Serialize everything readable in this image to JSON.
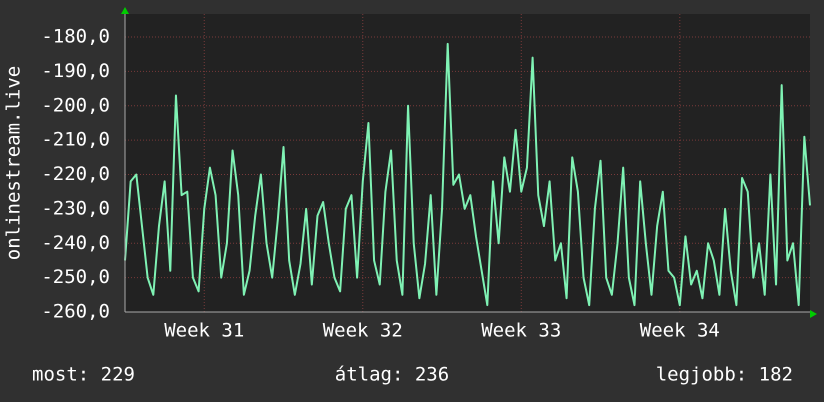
{
  "chart_data": {
    "type": "line",
    "y_label": "onlinestream.live",
    "values": [
      -245,
      -222,
      -220,
      -235,
      -250,
      -255,
      -235,
      -222,
      -248,
      -197,
      -226,
      -225,
      -250,
      -254,
      -230,
      -218,
      -226,
      -250,
      -240,
      -213,
      -226,
      -255,
      -248,
      -232,
      -220,
      -240,
      -250,
      -233,
      -212,
      -245,
      -255,
      -246,
      -230,
      -252,
      -232,
      -228,
      -240,
      -250,
      -254,
      -230,
      -226,
      -250,
      -222,
      -205,
      -245,
      -252,
      -225,
      -213,
      -245,
      -255,
      -200,
      -240,
      -256,
      -246,
      -226,
      -255,
      -230,
      -182,
      -223,
      -220,
      -230,
      -226,
      -238,
      -248,
      -258,
      -222,
      -240,
      -215,
      -225,
      -207,
      -225,
      -218,
      -186,
      -226,
      -235,
      -222,
      -245,
      -240,
      -256,
      -215,
      -225,
      -250,
      -258,
      -230,
      -216,
      -250,
      -255,
      -240,
      -218,
      -250,
      -258,
      -222,
      -240,
      -255,
      -235,
      -225,
      -248,
      -250,
      -258,
      -238,
      -252,
      -248,
      -256,
      -240,
      -245,
      -255,
      -230,
      -248,
      -258,
      -221,
      -225,
      -250,
      -240,
      -255,
      -220,
      -252,
      -194,
      -245,
      -240,
      -258,
      -209,
      -229
    ],
    "color": "#7ff2b4",
    "xlim": [
      0,
      121
    ],
    "xticks": [
      {
        "value": 14,
        "label": "Week 31"
      },
      {
        "value": 42,
        "label": "Week 32"
      },
      {
        "value": 70,
        "label": "Week 33"
      },
      {
        "value": 98,
        "label": "Week 34"
      }
    ],
    "ylim": [
      -260,
      -173.3
    ],
    "yticks": [
      {
        "value": -180,
        "label": "-180,0"
      },
      {
        "value": -190,
        "label": "-190,0"
      },
      {
        "value": -200,
        "label": "-200,0"
      },
      {
        "value": -210,
        "label": "-210,0"
      },
      {
        "value": -220,
        "label": "-220,0"
      },
      {
        "value": -230,
        "label": "-230,0"
      },
      {
        "value": -240,
        "label": "-240,0"
      },
      {
        "value": -250,
        "label": "-250,0"
      },
      {
        "value": -260,
        "label": "-260,0"
      }
    ],
    "grid": true,
    "footer": [
      "most: 229",
      "átlag: 236",
      "legjobb: 182"
    ]
  }
}
